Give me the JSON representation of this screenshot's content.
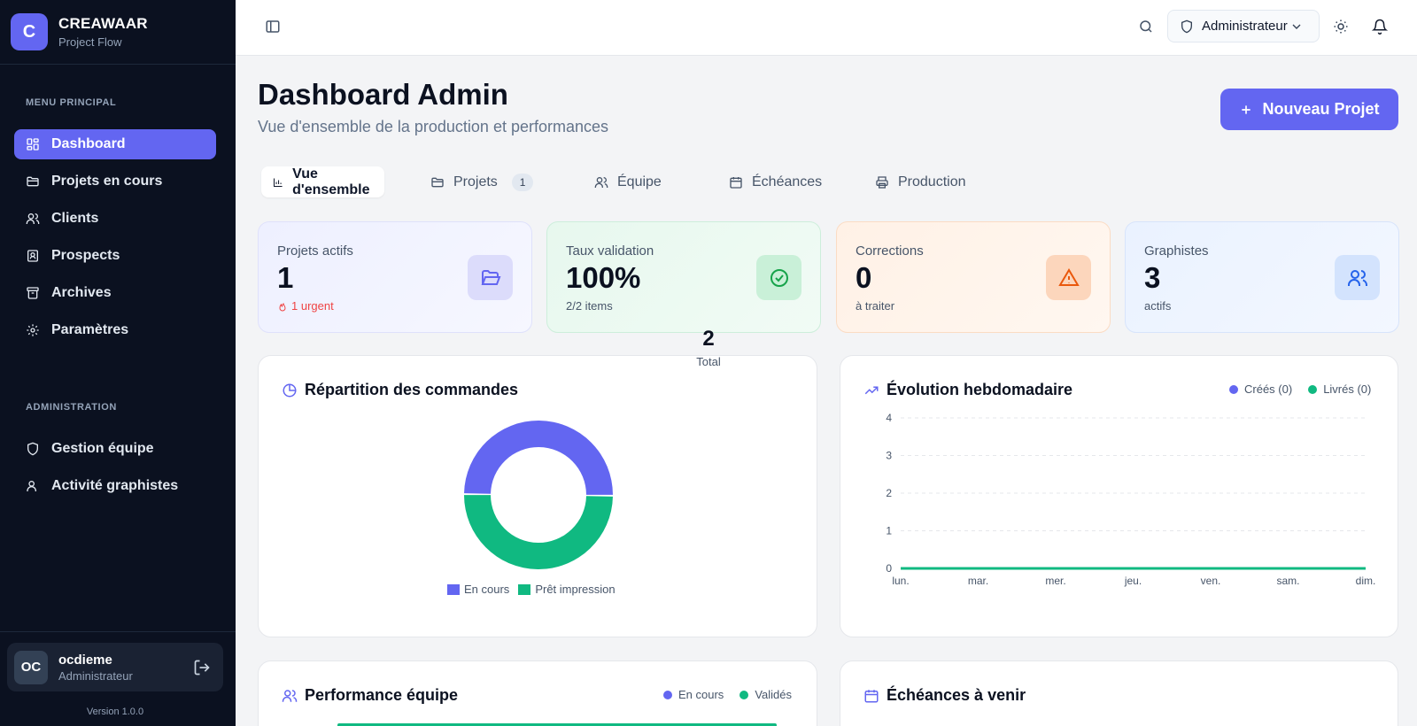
{
  "brand": {
    "logo_letter": "C",
    "name": "CREAWAAR",
    "subtitle": "Project Flow"
  },
  "sidebar": {
    "section_main": "MENU PRINCIPAL",
    "main_items": [
      {
        "label": "Dashboard",
        "icon": "grid-icon",
        "active": true
      },
      {
        "label": "Projets en cours",
        "icon": "folder-icon"
      },
      {
        "label": "Clients",
        "icon": "users-icon"
      },
      {
        "label": "Prospects",
        "icon": "contact-icon"
      },
      {
        "label": "Archives",
        "icon": "archive-icon"
      },
      {
        "label": "Paramètres",
        "icon": "gear-icon"
      }
    ],
    "section_admin": "ADMINISTRATION",
    "admin_items": [
      {
        "label": "Gestion équipe",
        "icon": "shield-icon"
      },
      {
        "label": "Activité graphistes",
        "icon": "user-icon"
      }
    ],
    "user": {
      "initials": "OC",
      "name": "ocdieme",
      "role": "Administrateur"
    },
    "version": "Version 1.0.0"
  },
  "topbar": {
    "role_selector": "Administrateur"
  },
  "header": {
    "title": "Dashboard Admin",
    "subtitle": "Vue d'ensemble de la production et performances",
    "new_button": "Nouveau Projet"
  },
  "tabs": [
    {
      "label": "Vue d'ensemble",
      "icon": "bar-chart-icon",
      "active": true
    },
    {
      "label": "Projets",
      "icon": "folder-icon",
      "badge": "1"
    },
    {
      "label": "Équipe",
      "icon": "users-icon"
    },
    {
      "label": "Échéances",
      "icon": "calendar-icon"
    },
    {
      "label": "Production",
      "icon": "printer-icon"
    }
  ],
  "stats": [
    {
      "label": "Projets actifs",
      "value": "1",
      "sub": "1 urgent"
    },
    {
      "label": "Taux validation",
      "value": "100%",
      "sub": "2/2 items"
    },
    {
      "label": "Corrections",
      "value": "0",
      "sub": "à traiter"
    },
    {
      "label": "Graphistes",
      "value": "3",
      "sub": "actifs"
    }
  ],
  "colors": {
    "accent": "#6366f1",
    "green": "#10b981",
    "sidebar_bg": "#0b1120",
    "orange": "#ea580c"
  },
  "chart_data": [
    {
      "type": "pie",
      "title": "Répartition des commandes",
      "center_value": "2",
      "center_label": "Total",
      "categories": [
        "En cours",
        "Prêt impression"
      ],
      "values": [
        1,
        1
      ],
      "colors": [
        "#6366f1",
        "#10b981"
      ],
      "legend_position": "bottom"
    },
    {
      "type": "line",
      "title": "Évolution hebdomadaire",
      "categories": [
        "lun.",
        "mar.",
        "mer.",
        "jeu.",
        "ven.",
        "sam.",
        "dim."
      ],
      "yticks": [
        "0",
        "1",
        "2",
        "3",
        "4"
      ],
      "ylim": [
        0,
        4
      ],
      "grid": true,
      "legend_position": "top-right",
      "series": [
        {
          "name": "Créés (0)",
          "color": "#6366f1",
          "values": [
            0,
            0,
            0,
            0,
            0,
            0,
            0
          ]
        },
        {
          "name": "Livrés (0)",
          "color": "#10b981",
          "values": [
            0,
            0,
            0,
            0,
            0,
            0,
            0
          ]
        }
      ]
    },
    {
      "type": "bar",
      "title": "Performance équipe",
      "legend_position": "top-right",
      "series": [
        {
          "name": "En cours",
          "color": "#6366f1"
        },
        {
          "name": "Validés",
          "color": "#10b981"
        }
      ]
    }
  ],
  "upcoming": {
    "title": "Échéances à venir"
  }
}
